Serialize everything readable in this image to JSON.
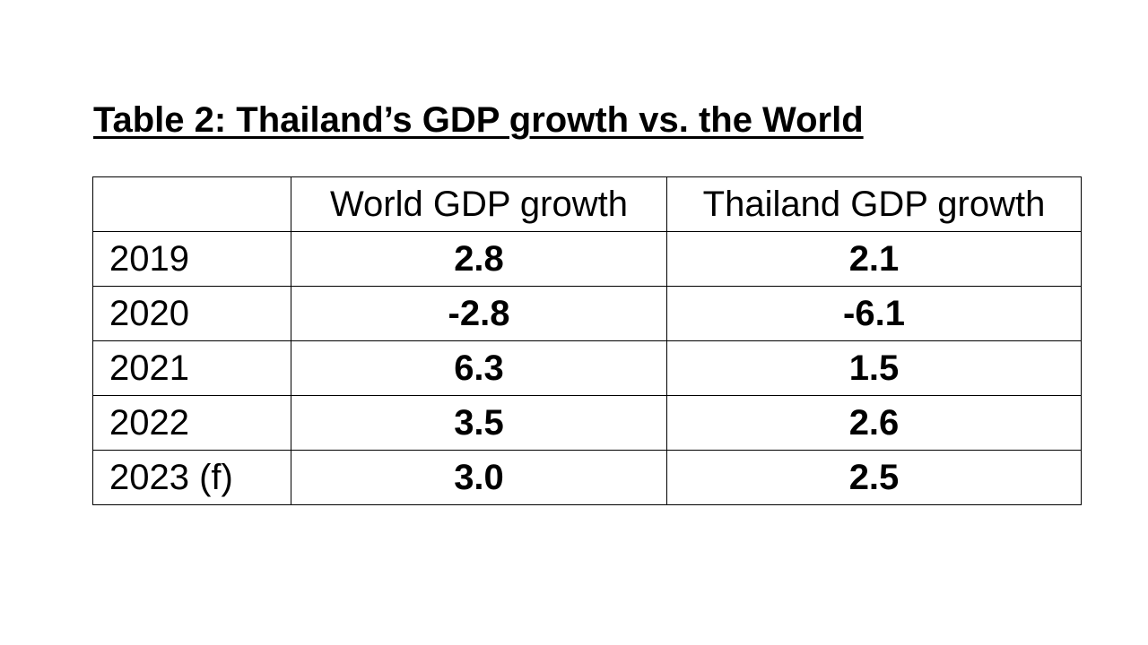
{
  "title": "Table 2: Thailand’s GDP growth vs. the World",
  "table": {
    "columns": [
      "",
      "World GDP growth",
      "Thailand GDP growth"
    ],
    "rows": [
      {
        "year": "2019",
        "world": "2.8",
        "thailand": "2.1"
      },
      {
        "year": "2020",
        "world": "-2.8",
        "thailand": "-6.1"
      },
      {
        "year": "2021",
        "world": "6.3",
        "thailand": "1.5"
      },
      {
        "year": "2022",
        "world": "3.5",
        "thailand": "2.6"
      },
      {
        "year": "2023 (f)",
        "world": "3.0",
        "thailand": "2.5"
      }
    ]
  }
}
